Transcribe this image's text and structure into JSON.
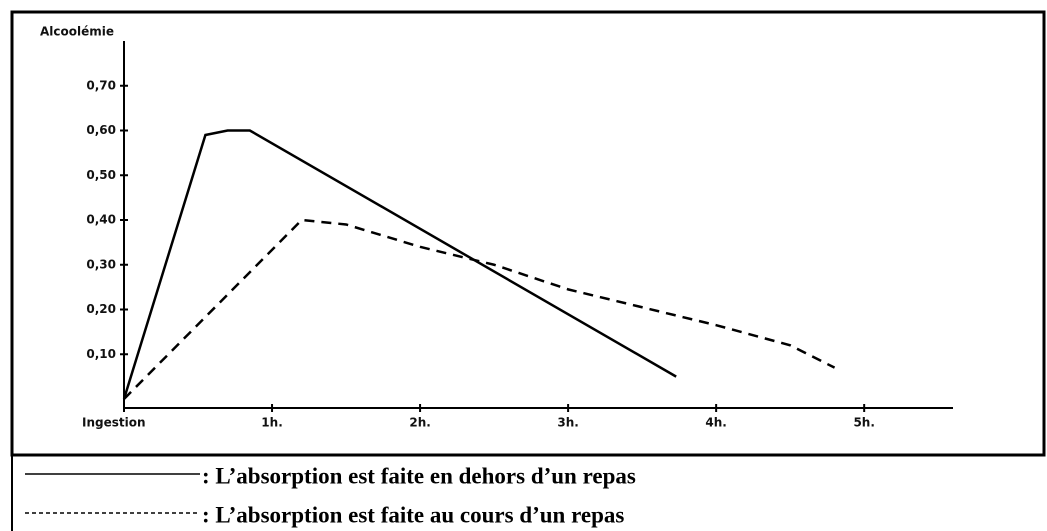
{
  "chart_data": {
    "type": "line",
    "y_label": "Alcoolémie",
    "xlim": [
      0,
      5.6
    ],
    "ylim": [
      0,
      0.8
    ],
    "xticks": [
      {
        "value": 0,
        "label": "Ingestion"
      },
      {
        "value": 1,
        "label": "1h."
      },
      {
        "value": 2,
        "label": "2h."
      },
      {
        "value": 3,
        "label": "3h."
      },
      {
        "value": 4,
        "label": "4h."
      },
      {
        "value": 5,
        "label": "5h."
      }
    ],
    "yticks": [
      {
        "value": 0.1,
        "label": "0,10"
      },
      {
        "value": 0.2,
        "label": "0,20"
      },
      {
        "value": 0.3,
        "label": "0,30"
      },
      {
        "value": 0.4,
        "label": "0,40"
      },
      {
        "value": 0.5,
        "label": "0,50"
      },
      {
        "value": 0.6,
        "label": "0,60"
      },
      {
        "value": 0.7,
        "label": "0,70"
      }
    ],
    "series": [
      {
        "name": ": L’absorption est faite en dehors d’un repas",
        "color": "#000000",
        "style": "solid",
        "x": [
          0,
          0.55,
          0.7,
          0.85,
          3.73
        ],
        "values": [
          0,
          0.59,
          0.6,
          0.6,
          0.05
        ]
      },
      {
        "name": ": L’absorption est faite au cours d’un repas",
        "color": "#000000",
        "style": "dashed",
        "x": [
          0,
          1.2,
          1.5,
          2.0,
          2.5,
          3.0,
          4.0,
          4.5,
          4.8
        ],
        "values": [
          0,
          0.4,
          0.39,
          0.34,
          0.3,
          0.245,
          0.165,
          0.12,
          0.07
        ]
      }
    ]
  }
}
